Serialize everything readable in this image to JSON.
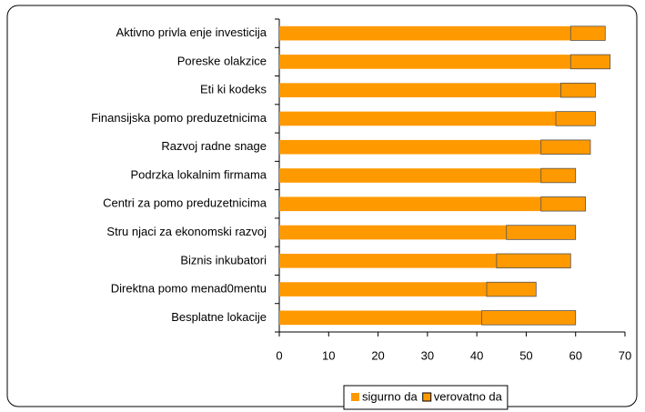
{
  "chart_data": {
    "type": "barh_stacked",
    "categories": [
      "Aktivno privla enje investicija",
      "Poreske olakzice",
      "Eti ki kodeks",
      "Finansijska pomo preduzetnicima",
      "Razvoj radne snage",
      "Podrzka lokalnim firmama",
      "Centri za pomo preduzetnicima",
      "Stru njaci za ekonomski razvoj",
      "Biznis inkubatori",
      "Direktna pomo menad0mentu",
      "Besplatne lokacije"
    ],
    "series": [
      {
        "name": "sigurno da",
        "color": "#ff9900",
        "values": [
          59,
          59,
          57,
          56,
          53,
          53,
          53,
          46,
          44,
          42,
          41
        ]
      },
      {
        "name": "verovatno da",
        "color": "#ff9900",
        "edgecolor": "#555555",
        "values": [
          7,
          8,
          7,
          8,
          10,
          7,
          9,
          14,
          15,
          10,
          19
        ]
      }
    ],
    "xlim": [
      0,
      70
    ],
    "xticks": [
      0,
      10,
      20,
      30,
      40,
      50,
      60,
      70
    ],
    "grid": false,
    "legend": "bottom"
  }
}
